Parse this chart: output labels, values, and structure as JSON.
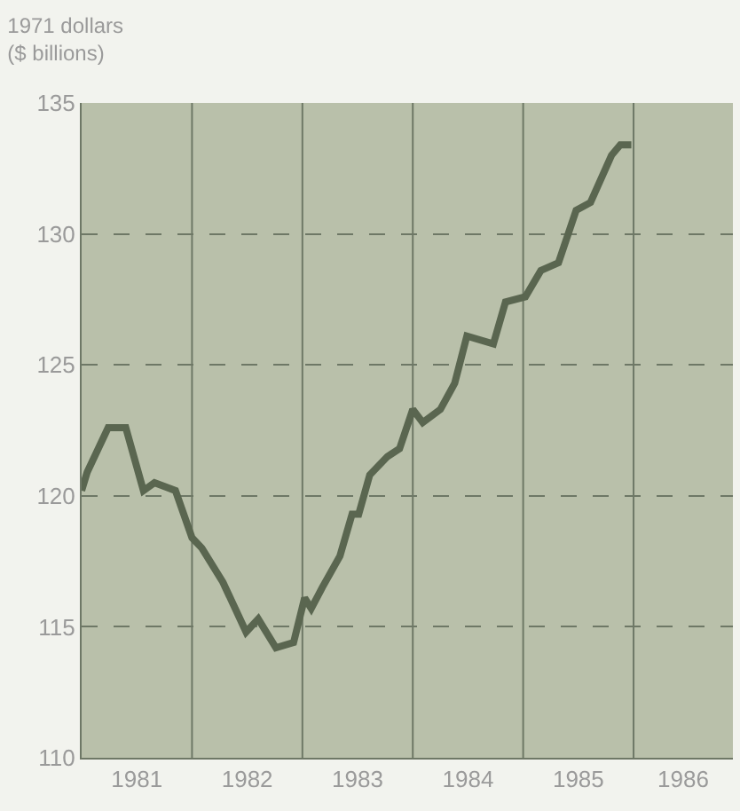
{
  "chart_data": {
    "type": "line",
    "title": "1971 dollars",
    "subtitle": "($ billions)",
    "x": [
      1981.0,
      1981.05,
      1981.24,
      1981.4,
      1981.56,
      1981.66,
      1981.85,
      1982.0,
      1982.09,
      1982.28,
      1982.49,
      1982.6,
      1982.76,
      1982.92,
      1983.02,
      1983.08,
      1983.18,
      1983.34,
      1983.45,
      1983.51,
      1983.61,
      1983.77,
      1983.88,
      1984.0,
      1984.09,
      1984.25,
      1984.38,
      1984.49,
      1984.73,
      1984.84,
      1985.02,
      1985.16,
      1985.32,
      1985.48,
      1985.61,
      1985.8,
      1985.88,
      1985.98
    ],
    "series": [
      {
        "color": "#5a6650",
        "values": [
          120.2,
          120.9,
          122.6,
          122.6,
          120.2,
          120.5,
          120.2,
          118.4,
          118.0,
          116.7,
          114.8,
          115.3,
          114.2,
          114.4,
          116.1,
          115.7,
          116.5,
          117.7,
          119.3,
          119.3,
          120.8,
          121.5,
          121.8,
          123.3,
          122.8,
          123.3,
          124.3,
          126.1,
          125.8,
          127.4,
          127.6,
          128.6,
          128.9,
          130.9,
          131.2,
          133.0,
          133.4,
          133.4
        ]
      }
    ],
    "xlim": [
      1981,
      1986.9
    ],
    "xticks": [
      {
        "value": 1981.5,
        "label": "1981"
      },
      {
        "value": 1982.5,
        "label": "1982"
      },
      {
        "value": 1983.5,
        "label": "1983"
      },
      {
        "value": 1984.5,
        "label": "1984"
      },
      {
        "value": 1985.5,
        "label": "1985"
      },
      {
        "value": 1986.45,
        "label": "1986"
      }
    ],
    "ylim": [
      110,
      135
    ],
    "yticks": [
      110,
      115,
      120,
      125,
      130,
      135
    ],
    "grid": "y",
    "marker": "none",
    "line_style": "solid",
    "ref_lines": [
      {
        "axis": "x",
        "value": 1982,
        "label": null,
        "color": "#6e7866",
        "line_style": "solid"
      },
      {
        "axis": "x",
        "value": 1983,
        "label": null,
        "color": "#6e7866",
        "line_style": "solid"
      },
      {
        "axis": "x",
        "value": 1984,
        "label": null,
        "color": "#6e7866",
        "line_style": "solid"
      },
      {
        "axis": "x",
        "value": 1985,
        "label": null,
        "color": "#6e7866",
        "line_style": "solid"
      },
      {
        "axis": "x",
        "value": 1986,
        "label": null,
        "color": "#6e7866",
        "line_style": "solid"
      }
    ]
  }
}
